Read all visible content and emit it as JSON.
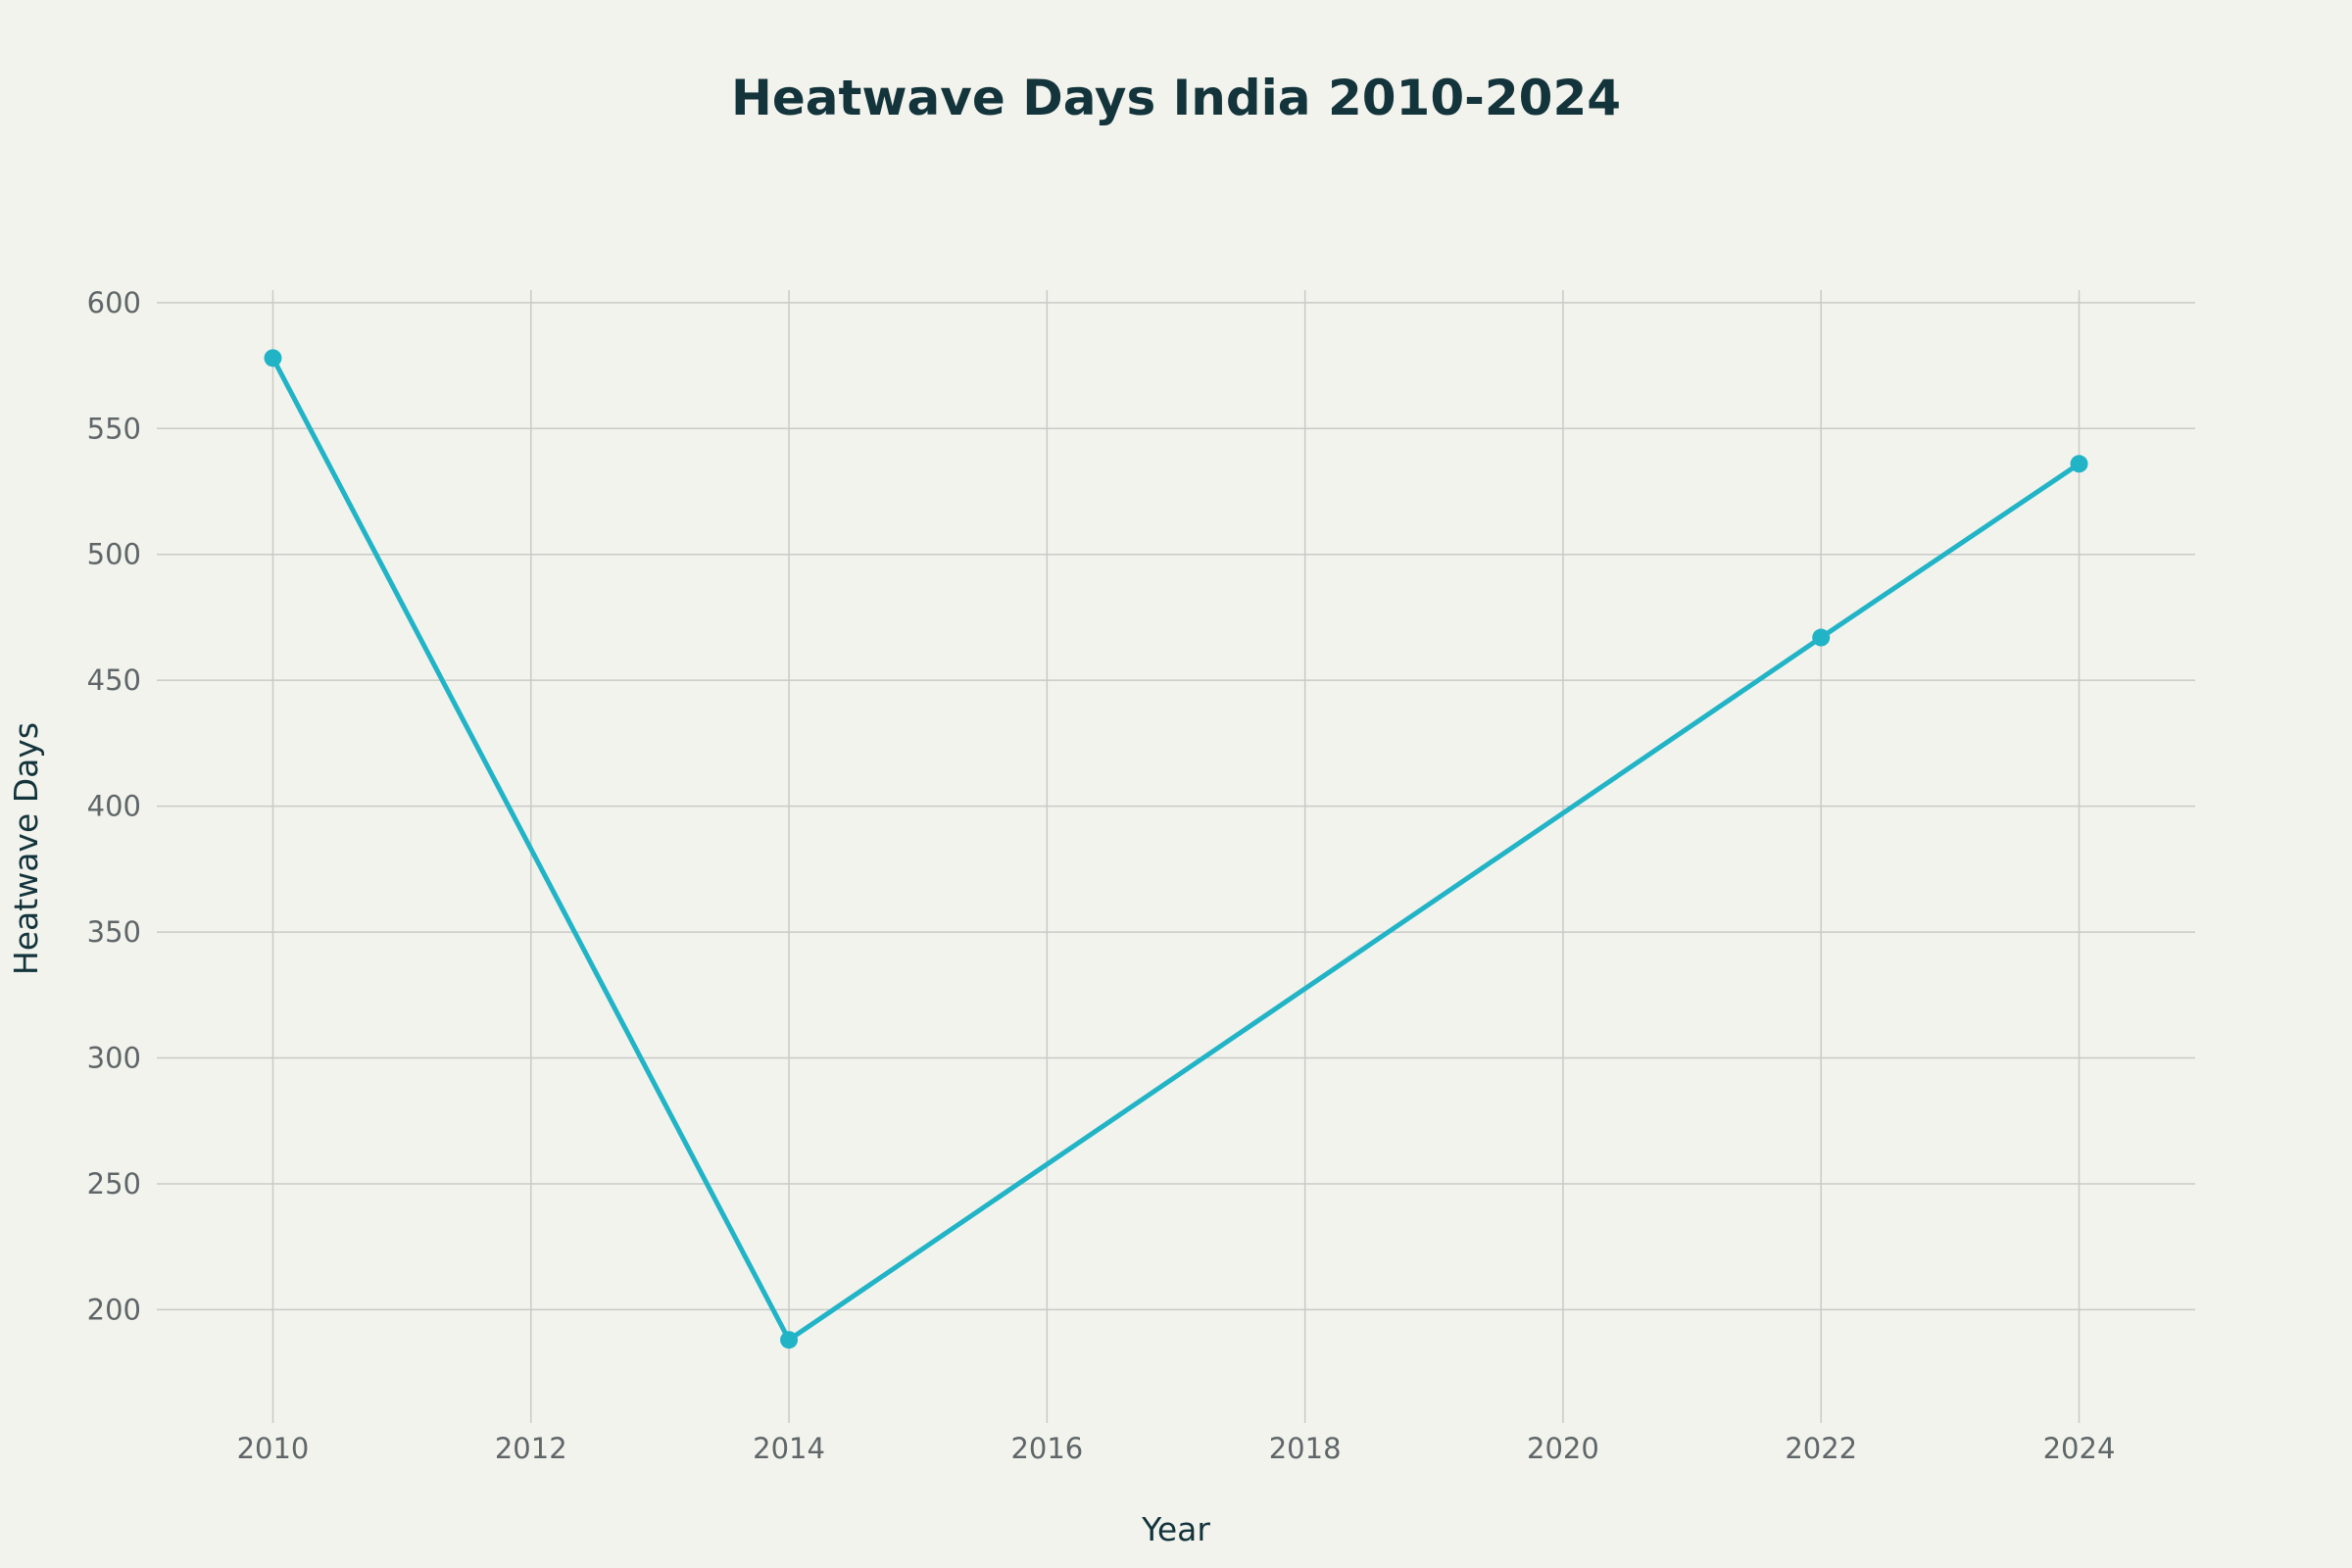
{
  "chart_data": {
    "type": "line",
    "title": "Heatwave Days India 2010-2024",
    "xlabel": "Year",
    "ylabel": "Heatwave Days",
    "x": [
      2010,
      2014,
      2022,
      2024
    ],
    "series": [
      {
        "values": [
          578,
          188,
          467,
          536
        ]
      }
    ],
    "xlim": [
      2009.1,
      2024.9
    ],
    "ylim": [
      155,
      605
    ],
    "xticks": [
      "2010",
      "2012",
      "2014",
      "2016",
      "2018",
      "2020",
      "2022",
      "2024"
    ],
    "yticks": [
      "200",
      "250",
      "300",
      "350",
      "400",
      "450",
      "500",
      "550",
      "600"
    ],
    "grid": true,
    "legend": "none",
    "colors": {
      "line": "#21b4c6",
      "background": "#f3f3ee",
      "grid": "#c9cac6",
      "title": "#13343b",
      "tick": "#5f6668"
    }
  }
}
